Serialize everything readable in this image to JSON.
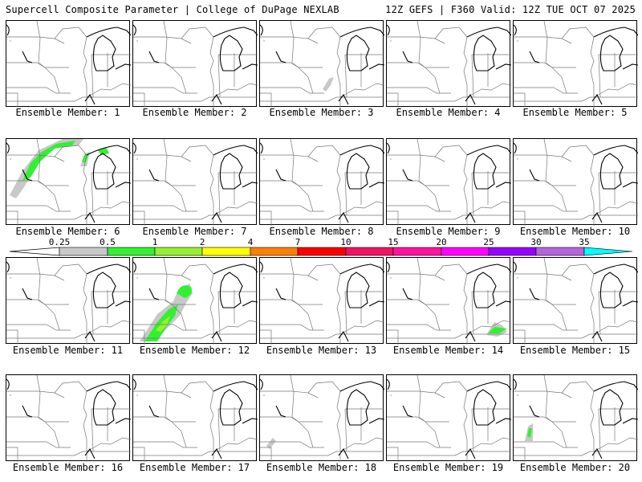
{
  "header": {
    "title": "Supercell Composite Parameter | College of DuPage NEXLAB",
    "run_info": "12Z GEFS | F360 Valid: 12Z TUE OCT 07 2025"
  },
  "members": [
    {
      "label": "Ensemble Member: 1"
    },
    {
      "label": "Ensemble Member: 2"
    },
    {
      "label": "Ensemble Member: 3"
    },
    {
      "label": "Ensemble Member: 4"
    },
    {
      "label": "Ensemble Member: 5"
    },
    {
      "label": "Ensemble Member: 6"
    },
    {
      "label": "Ensemble Member: 7"
    },
    {
      "label": "Ensemble Member: 8"
    },
    {
      "label": "Ensemble Member: 9"
    },
    {
      "label": "Ensemble Member: 10"
    },
    {
      "label": "Ensemble Member: 11"
    },
    {
      "label": "Ensemble Member: 12"
    },
    {
      "label": "Ensemble Member: 13"
    },
    {
      "label": "Ensemble Member: 14"
    },
    {
      "label": "Ensemble Member: 15"
    },
    {
      "label": "Ensemble Member: 16"
    },
    {
      "label": "Ensemble Member: 17"
    },
    {
      "label": "Ensemble Member: 18"
    },
    {
      "label": "Ensemble Member: 19"
    },
    {
      "label": "Ensemble Member: 20"
    }
  ],
  "colorbar": {
    "ticks": [
      "0.25",
      "0.5",
      "1",
      "2",
      "4",
      "7",
      "10",
      "15",
      "20",
      "25",
      "30",
      "35"
    ],
    "colors": [
      "#c8c8c8",
      "#32f032",
      "#96f032",
      "#ffff00",
      "#ff8000",
      "#ff0000",
      "#f01464",
      "#ff14a0",
      "#ff00ff",
      "#9600ff",
      "#b464dc",
      "#00ffff"
    ]
  }
}
